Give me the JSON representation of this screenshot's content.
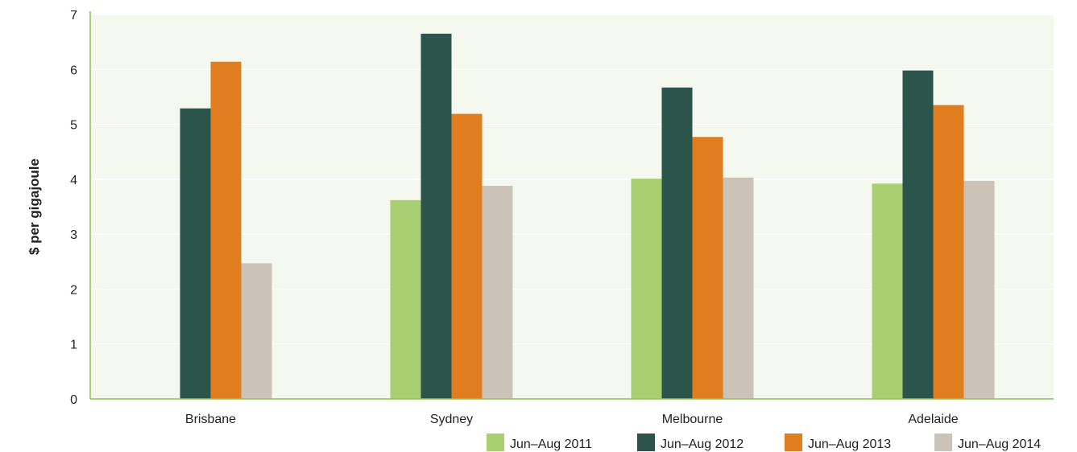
{
  "chart_data": {
    "type": "bar",
    "title": "",
    "xlabel": "",
    "ylabel": "$ per gigajoule",
    "ylim": [
      0,
      7
    ],
    "yticks": [
      0,
      1,
      2,
      3,
      4,
      5,
      6,
      7
    ],
    "grid": true,
    "legend_position": "bottom-right",
    "categories": [
      "Brisbane",
      "Sydney",
      "Melbourne",
      "Adelaide"
    ],
    "series": [
      {
        "name": "Jun–Aug 2011",
        "color": "#a8cf72",
        "values": [
          null,
          3.62,
          4.01,
          3.92
        ]
      },
      {
        "name": "Jun–Aug 2012",
        "color": "#2b544b",
        "values": [
          5.29,
          6.65,
          5.67,
          5.98
        ]
      },
      {
        "name": "Jun–Aug 2013",
        "color": "#e07d1e",
        "values": [
          6.14,
          5.19,
          4.77,
          5.35
        ]
      },
      {
        "name": "Jun–Aug 2014",
        "color": "#cbc3b8",
        "values": [
          2.47,
          3.88,
          4.03,
          3.97
        ]
      }
    ],
    "plot_background": "#f4f8ef",
    "axis_color": "#8fc15a",
    "grid_color": "#ffffff"
  }
}
